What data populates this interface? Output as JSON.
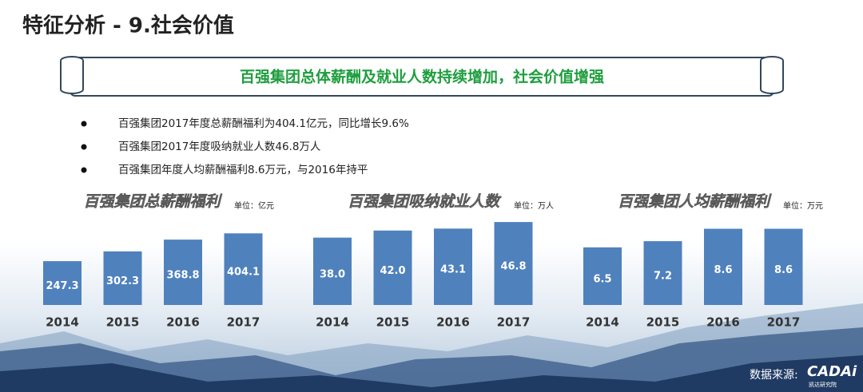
{
  "header": {
    "title": "特征分析 - 9.社会价值"
  },
  "banner": {
    "text": "百强集团总体薪酬及就业人数持续增加，社会价值增强"
  },
  "bullets": [
    "百强集团2017年度总薪酬福利为404.1亿元，同比增长9.6%",
    "百强集团2017年度吸纳就业人数46.8万人",
    "百强集团年度人均薪酬福利8.6万元，与2016年持平"
  ],
  "source": {
    "label": "数据来源:",
    "logo": "CADAi",
    "logo_sub": "凯达研究院"
  },
  "chart_data": [
    {
      "type": "bar",
      "title": "百强集团总薪酬福利",
      "unit": "单位：亿元",
      "categories": [
        "2014",
        "2015",
        "2016",
        "2017"
      ],
      "values": [
        247.3,
        302.3,
        368.8,
        404.1
      ],
      "value_labels": [
        "247.3",
        "302.3",
        "368.8",
        "404.1"
      ],
      "color": "#4f81bd",
      "ylim": [
        0,
        500
      ]
    },
    {
      "type": "bar",
      "title": "百强集团吸纳就业人数",
      "unit": "单位：万人",
      "categories": [
        "2014",
        "2015",
        "2016",
        "2017"
      ],
      "values": [
        38,
        42,
        43.1,
        46.8
      ],
      "value_labels": [
        "38.0",
        "42.0",
        "43.1",
        "46.8"
      ],
      "color": "#4f81bd",
      "ylim": [
        0,
        50
      ]
    },
    {
      "type": "bar",
      "title": "百强集团人均薪酬福利",
      "unit": "单位：万元",
      "categories": [
        "2014",
        "2015",
        "2016",
        "2017"
      ],
      "values": [
        6.5,
        7.2,
        8.6,
        8.6
      ],
      "value_labels": [
        "6.5",
        "7.2",
        "8.6",
        "8.6"
      ],
      "color": "#4f81bd",
      "ylim": [
        0,
        10
      ]
    }
  ]
}
